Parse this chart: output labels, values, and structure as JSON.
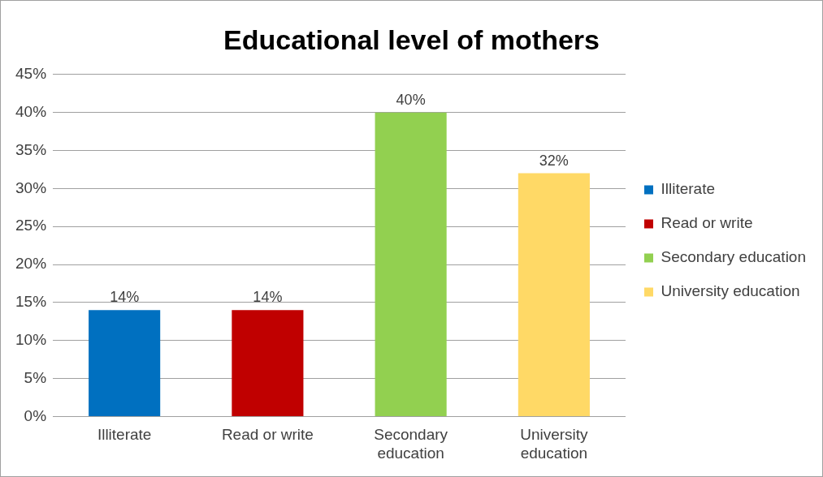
{
  "chart_data": {
    "type": "bar",
    "title": "Educational level of mothers",
    "categories": [
      "Illiterate",
      "Read or write",
      "Secondary education",
      "University education"
    ],
    "series": [
      {
        "name": "Illiterate",
        "color": "#0070c0",
        "values": [
          14,
          null,
          null,
          null
        ],
        "value_labels": [
          "14%",
          null,
          null,
          null
        ]
      },
      {
        "name": "Read or write",
        "color": "#c00000",
        "values": [
          null,
          14,
          null,
          null
        ],
        "value_labels": [
          null,
          "14%",
          null,
          null
        ]
      },
      {
        "name": "Secondary education",
        "color": "#92d050",
        "values": [
          null,
          null,
          40,
          null
        ],
        "value_labels": [
          null,
          null,
          "40%",
          null
        ]
      },
      {
        "name": "University education",
        "color": "#ffd966",
        "values": [
          null,
          null,
          null,
          32
        ],
        "value_labels": [
          null,
          null,
          null,
          "32%"
        ]
      }
    ],
    "ylim": [
      0,
      45
    ],
    "yticks": [
      {
        "value": 0,
        "label": "0%"
      },
      {
        "value": 5,
        "label": "5%"
      },
      {
        "value": 10,
        "label": "10%"
      },
      {
        "value": 15,
        "label": "15%"
      },
      {
        "value": 20,
        "label": "20%"
      },
      {
        "value": 25,
        "label": "25%"
      },
      {
        "value": 30,
        "label": "30%"
      },
      {
        "value": 35,
        "label": "35%"
      },
      {
        "value": 40,
        "label": "40%"
      },
      {
        "value": 45,
        "label": "45%"
      }
    ],
    "grid": "y",
    "legend": "right"
  }
}
